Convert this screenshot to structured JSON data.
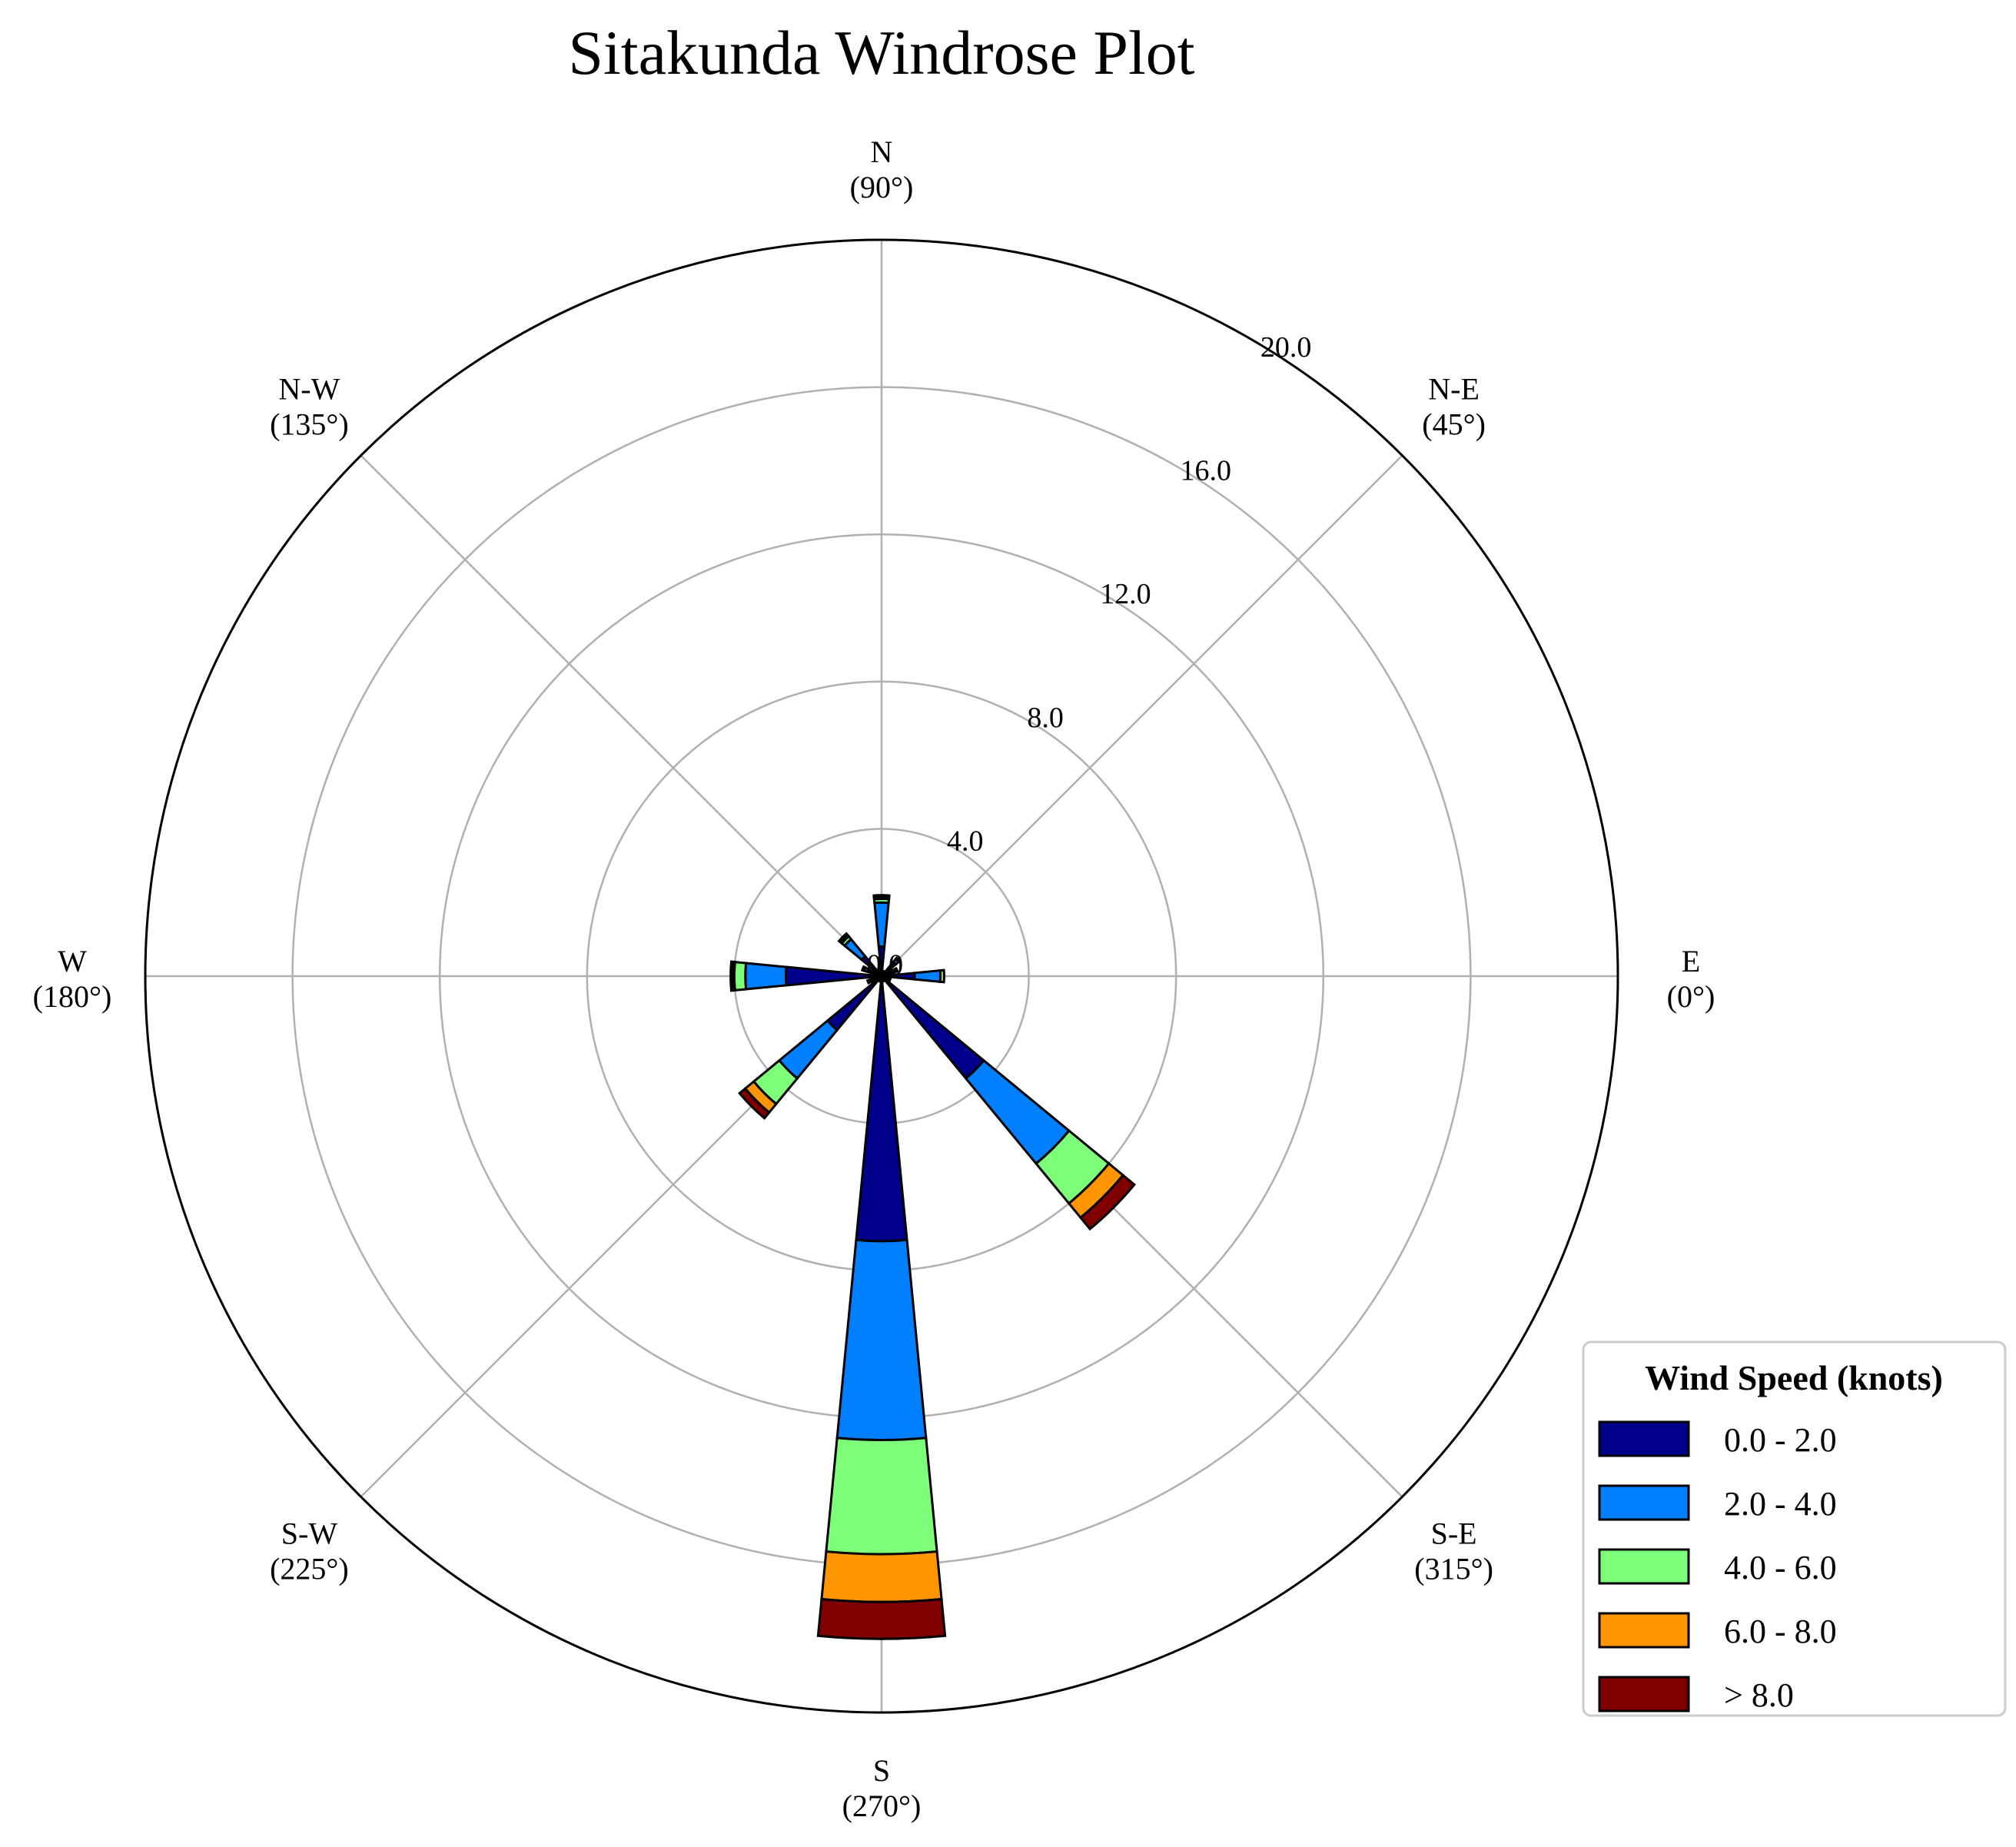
{
  "chart_data": {
    "type": "windrose",
    "title": "Sitakunda Windrose Plot",
    "directions": [
      {
        "label": "E",
        "deg": "(0°)",
        "angle": 0
      },
      {
        "label": "N-E",
        "deg": "(45°)",
        "angle": 45
      },
      {
        "label": "N",
        "deg": "(90°)",
        "angle": 90
      },
      {
        "label": "N-W",
        "deg": "(135°)",
        "angle": 135
      },
      {
        "label": "W",
        "deg": "(180°)",
        "angle": 180
      },
      {
        "label": "S-W",
        "deg": "(225°)",
        "angle": 225
      },
      {
        "label": "S",
        "deg": "(270°)",
        "angle": 270
      },
      {
        "label": "S-E",
        "deg": "(315°)",
        "angle": 315
      }
    ],
    "radial_ticks": [
      "0.0",
      "4.0",
      "8.0",
      "12.0",
      "16.0",
      "20.0"
    ],
    "rmax": 20,
    "rlabel_position_deg": 57,
    "legend": {
      "title": "Wind Speed (knots)",
      "position": "lower-right",
      "bins": [
        {
          "label": "0.0 - 2.0",
          "color": "#00008b"
        },
        {
          "label": "2.0 - 4.0",
          "color": "#0080ff"
        },
        {
          "label": "4.0 - 6.0",
          "color": "#7dff7a"
        },
        {
          "label": "6.0 - 8.0",
          "color": "#ff9500"
        },
        {
          "label": "> 8.0",
          "color": "#800000"
        }
      ]
    },
    "sectors_deg": [
      0,
      22.5,
      45,
      67.5,
      90,
      112.5,
      135,
      157.5,
      180,
      202.5,
      225,
      247.5,
      270,
      292.5,
      315,
      337.5
    ],
    "series": [
      {
        "name": "0.0 - 2.0",
        "values": [
          0.9,
          0.3,
          0.5,
          0.1,
          0.8,
          0.1,
          0.7,
          0.4,
          2.6,
          0.3,
          1.9,
          0.1,
          7.2,
          0.1,
          3.6,
          0.2
        ]
      },
      {
        "name": "2.0 - 4.0",
        "values": [
          0.7,
          0.1,
          0.1,
          0.05,
          1.2,
          0.05,
          0.6,
          0.1,
          1.1,
          0.1,
          1.7,
          0.05,
          5.4,
          0.05,
          3.0,
          0.05
        ]
      },
      {
        "name": "4.0 - 6.0",
        "values": [
          0.1,
          0.05,
          0.05,
          0.0,
          0.1,
          0.0,
          0.1,
          0.05,
          0.3,
          0.0,
          0.9,
          0.0,
          3.1,
          0.0,
          1.4,
          0.0
        ]
      },
      {
        "name": "6.0 - 8.0",
        "values": [
          0.0,
          0.0,
          0.0,
          0.0,
          0.05,
          0.0,
          0.05,
          0.0,
          0.05,
          0.0,
          0.3,
          0.0,
          1.3,
          0.0,
          0.5,
          0.0
        ]
      },
      {
        "name": "> 8.0",
        "values": [
          0.0,
          0.0,
          0.0,
          0.0,
          0.05,
          0.0,
          0.05,
          0.0,
          0.05,
          0.0,
          0.2,
          0.0,
          1.0,
          0.0,
          0.4,
          0.0
        ]
      }
    ]
  }
}
